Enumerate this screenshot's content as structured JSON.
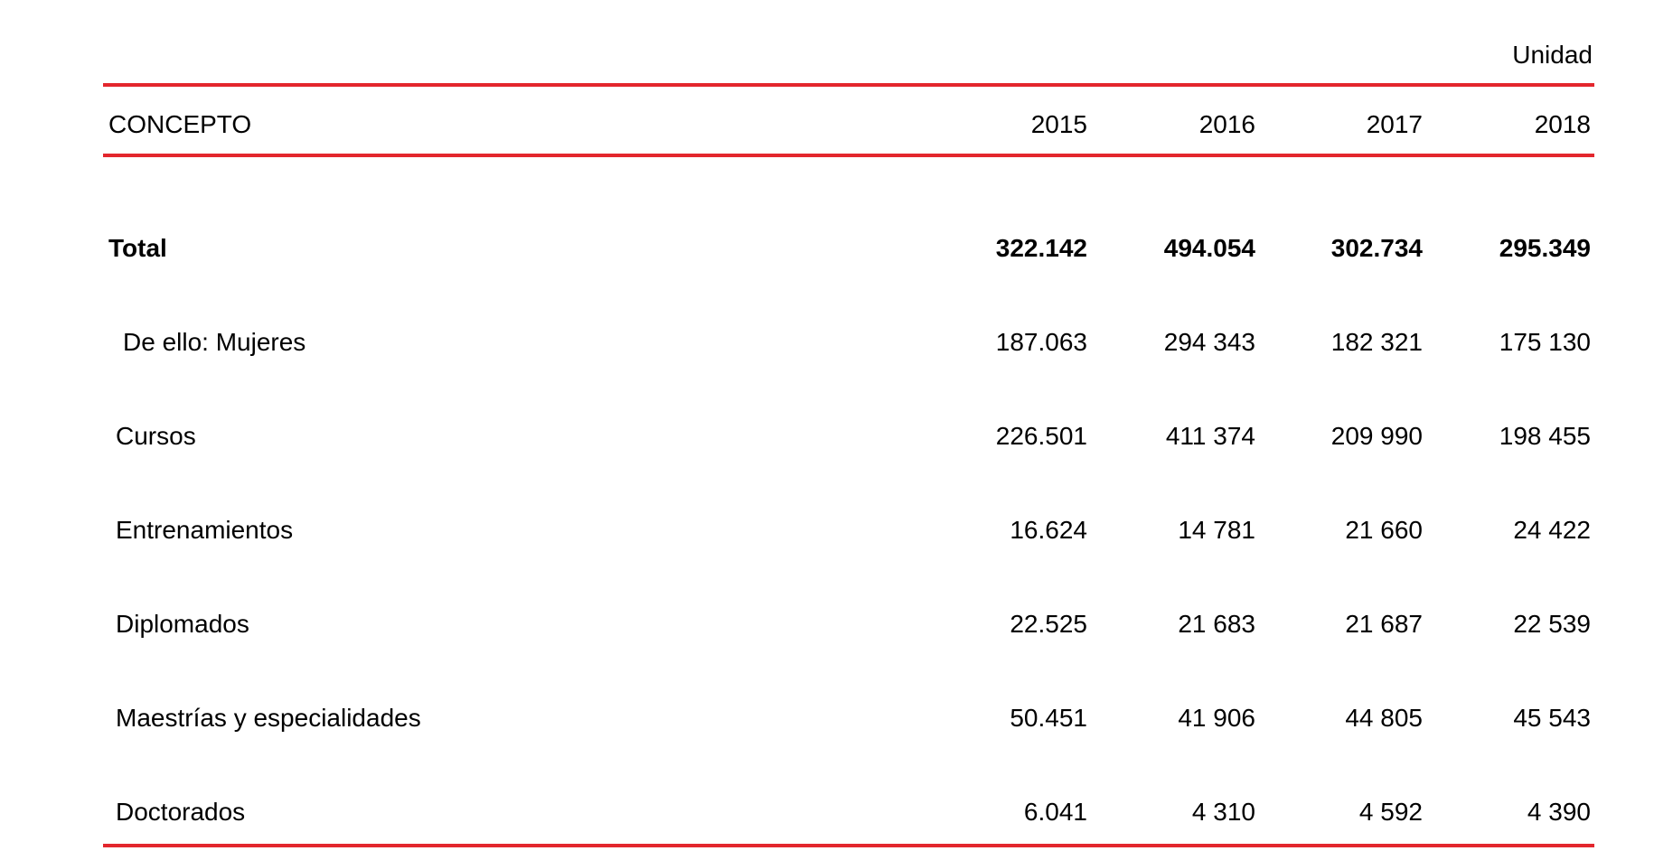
{
  "unit_label": "Unidad",
  "columns": {
    "concept": "CONCEPTO",
    "years": [
      "2015",
      "2016",
      "2017",
      "2018"
    ]
  },
  "rows": [
    {
      "label": "Total",
      "values": [
        "322.142",
        "494.054",
        "302.734",
        "295.349"
      ],
      "bold": true
    },
    {
      "label": "De ello: Mujeres",
      "values": [
        "187.063",
        "294 343",
        "182 321",
        "175 130"
      ],
      "bold": false
    },
    {
      "label": "Cursos",
      "values": [
        "226.501",
        "411 374",
        "209 990",
        "198 455"
      ],
      "bold": false
    },
    {
      "label": "Entrenamientos",
      "values": [
        "16.624",
        "14 781",
        "21 660",
        "24 422"
      ],
      "bold": false
    },
    {
      "label": "Diplomados",
      "values": [
        "22.525",
        "21 683",
        "21 687",
        "22 539"
      ],
      "bold": false
    },
    {
      "label": "Maestrías y especialidades",
      "values": [
        "50.451",
        "41 906",
        "44 805",
        "45 543"
      ],
      "bold": false
    },
    {
      "label": "Doctorados",
      "values": [
        "6.041",
        "4 310",
        "4 592",
        "4 390"
      ],
      "bold": false
    }
  ],
  "colors": {
    "rule": "#e3262d",
    "text": "#000000"
  }
}
